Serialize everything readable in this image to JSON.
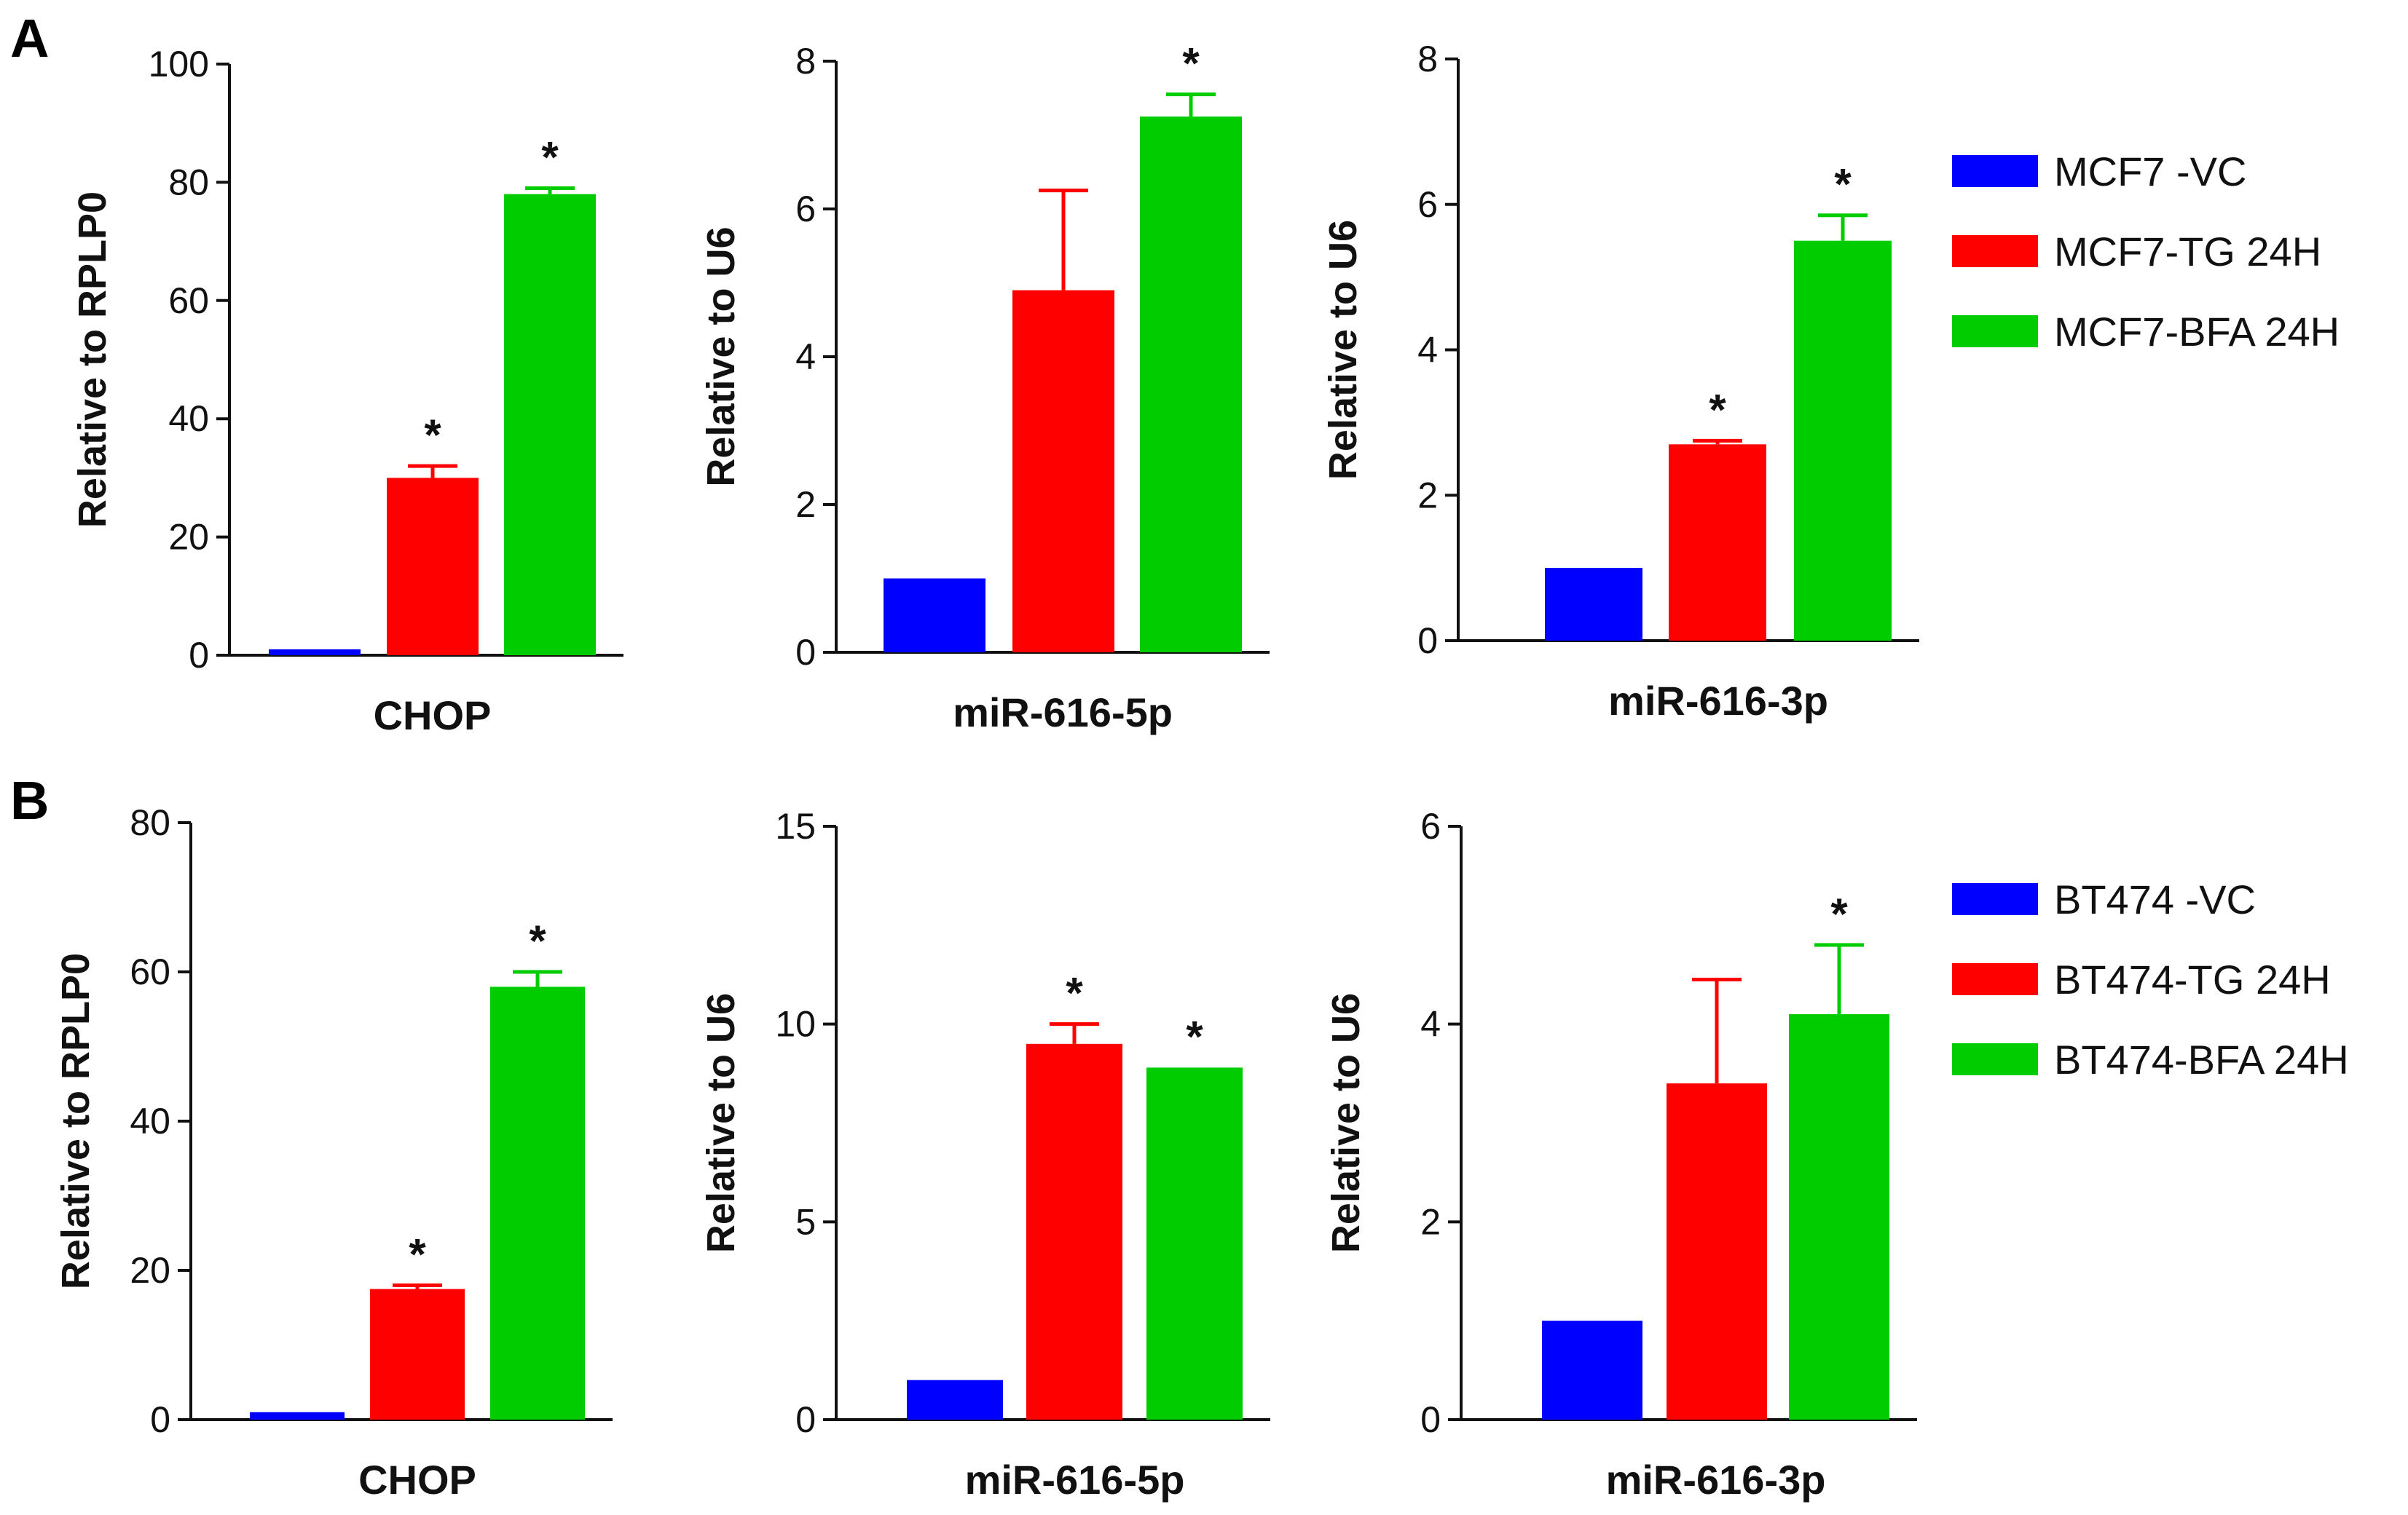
{
  "panels": [
    {
      "letter": "A",
      "legend": [
        {
          "label": "MCF7 -VC",
          "color": "#0000ff"
        },
        {
          "label": "MCF7-TG 24H",
          "color": "#ff0000"
        },
        {
          "label": "MCF7-BFA 24H",
          "color": "#00cc00"
        }
      ]
    },
    {
      "letter": "B",
      "legend": [
        {
          "label": "BT474 -VC",
          "color": "#0000ff"
        },
        {
          "label": "BT474-TG 24H",
          "color": "#ff0000"
        },
        {
          "label": "BT474-BFA 24H",
          "color": "#00cc00"
        }
      ]
    }
  ],
  "chart_data": [
    {
      "type": "bar",
      "panel": "A",
      "title": "",
      "xlabel": "CHOP",
      "ylabel": "Relative to RPLP0",
      "ylim": [
        0,
        100
      ],
      "yticks": [
        0,
        20,
        40,
        60,
        80,
        100
      ],
      "categories": [
        "MCF7 -VC",
        "MCF7-TG 24H",
        "MCF7-BFA 24H"
      ],
      "values": [
        1,
        30,
        78
      ],
      "errors": [
        0,
        2,
        1
      ],
      "significant": [
        false,
        true,
        true
      ]
    },
    {
      "type": "bar",
      "panel": "A",
      "title": "",
      "xlabel": "miR-616-5p",
      "ylabel": "Relative to U6",
      "ylim": [
        0,
        8
      ],
      "yticks": [
        0,
        2,
        4,
        6,
        8
      ],
      "categories": [
        "MCF7 -VC",
        "MCF7-TG 24H",
        "MCF7-BFA 24H"
      ],
      "values": [
        1,
        4.9,
        7.25
      ],
      "errors": [
        0,
        1.35,
        0.3
      ],
      "significant": [
        false,
        false,
        true
      ]
    },
    {
      "type": "bar",
      "panel": "A",
      "title": "",
      "xlabel": "miR-616-3p",
      "ylabel": "Relative to U6",
      "ylim": [
        0,
        8
      ],
      "yticks": [
        0,
        2,
        4,
        6,
        8
      ],
      "categories": [
        "MCF7 -VC",
        "MCF7-TG 24H",
        "MCF7-BFA 24H"
      ],
      "values": [
        1,
        2.7,
        5.5
      ],
      "errors": [
        0,
        0.05,
        0.35
      ],
      "significant": [
        false,
        true,
        true
      ]
    },
    {
      "type": "bar",
      "panel": "B",
      "title": "",
      "xlabel": "CHOP",
      "ylabel": "Relative to RPLP0",
      "ylim": [
        0,
        80
      ],
      "yticks": [
        0,
        20,
        40,
        60,
        80
      ],
      "categories": [
        "BT474 -VC",
        "BT474-TG 24H",
        "BT474-BFA 24H"
      ],
      "values": [
        1,
        17.5,
        58
      ],
      "errors": [
        0,
        0.5,
        2
      ],
      "significant": [
        false,
        true,
        true
      ]
    },
    {
      "type": "bar",
      "panel": "B",
      "title": "",
      "xlabel": "miR-616-5p",
      "ylabel": "Relative to U6",
      "ylim": [
        0,
        15
      ],
      "yticks": [
        0,
        5,
        10,
        15
      ],
      "categories": [
        "BT474 -VC",
        "BT474-TG 24H",
        "BT474-BFA 24H"
      ],
      "values": [
        1,
        9.5,
        8.9
      ],
      "errors": [
        0,
        0.5,
        0
      ],
      "significant": [
        false,
        true,
        true
      ]
    },
    {
      "type": "bar",
      "panel": "B",
      "title": "",
      "xlabel": "miR-616-3p",
      "ylabel": "Relative to U6",
      "ylim": [
        0,
        6
      ],
      "yticks": [
        0,
        2,
        4,
        6
      ],
      "categories": [
        "BT474 -VC",
        "BT474-TG 24H",
        "BT474-BFA 24H"
      ],
      "values": [
        1,
        3.4,
        4.1
      ],
      "errors": [
        0,
        1.05,
        0.7
      ],
      "significant": [
        false,
        false,
        true
      ]
    }
  ],
  "significance_marker": "*"
}
